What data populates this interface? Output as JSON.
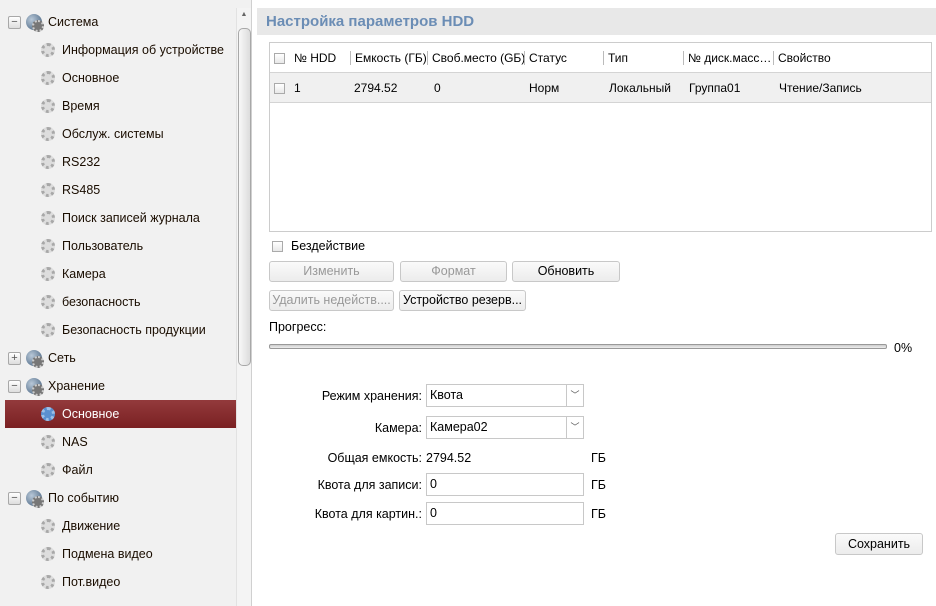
{
  "sidebar": {
    "items": [
      {
        "label": "Система",
        "type": "parent",
        "toggle": "−"
      },
      {
        "label": "Информация об устройстве",
        "type": "child"
      },
      {
        "label": "Основное",
        "type": "child"
      },
      {
        "label": "Время",
        "type": "child"
      },
      {
        "label": "Обслуж. системы",
        "type": "child"
      },
      {
        "label": "RS232",
        "type": "child"
      },
      {
        "label": "RS485",
        "type": "child"
      },
      {
        "label": "Поиск записей журнала",
        "type": "child"
      },
      {
        "label": "Пользователь",
        "type": "child"
      },
      {
        "label": "Камера",
        "type": "child"
      },
      {
        "label": "безопасность",
        "type": "child"
      },
      {
        "label": "Безопасность продукции",
        "type": "child"
      },
      {
        "label": "Сеть",
        "type": "parent",
        "toggle": "+"
      },
      {
        "label": "Хранение",
        "type": "parent",
        "toggle": "−"
      },
      {
        "label": "Основное",
        "type": "child",
        "selected": true
      },
      {
        "label": "NAS",
        "type": "child"
      },
      {
        "label": "Файл",
        "type": "child"
      },
      {
        "label": "По событию",
        "type": "parent",
        "toggle": "−"
      },
      {
        "label": "Движение",
        "type": "child"
      },
      {
        "label": "Подмена видео",
        "type": "child"
      },
      {
        "label": "Пот.видео",
        "type": "child"
      }
    ]
  },
  "main": {
    "title": "Настройка параметров HDD",
    "table": {
      "columns": [
        "№ HDD",
        "Емкость (ГБ)",
        "Своб.место (GБ)",
        "Статус",
        "Тип",
        "№ диск.масс…",
        "Свойство"
      ],
      "rows": [
        [
          "1",
          "2794.52",
          "0",
          "Норм",
          "Локальный",
          "Группа01",
          "Чтение/Запись"
        ]
      ]
    },
    "idle_label": "Бездействие",
    "buttons": {
      "edit": "Изменить",
      "format": "Формат",
      "refresh": "Обновить",
      "delete": "Удалить недейств....",
      "backup": "Устройство резерв..."
    },
    "progress_label": "Прогресс:",
    "progress_value": "0%",
    "form": {
      "mode_label": "Режим хранения:",
      "mode_value": "Квота",
      "camera_label": "Камера:",
      "camera_value": "Камера02",
      "total_label": "Общая емкость:",
      "total_value": "2794.52",
      "unit": "ГБ",
      "rec_quota_label": "Квота для записи:",
      "rec_quota_value": "0",
      "pic_quota_label": "Квота для картин.:",
      "pic_quota_value": "0",
      "save": "Сохранить"
    }
  },
  "colors": {
    "selected": "#862c2e",
    "title": "#6b8db5"
  }
}
